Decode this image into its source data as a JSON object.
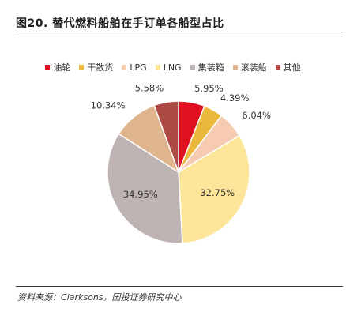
{
  "figure": {
    "title": "图20. 替代燃料船舶在手订单各船型占比",
    "source": "资料来源：Clarksons，国投证券研究中心"
  },
  "chart_data": {
    "type": "pie",
    "title": "",
    "start_angle_deg": 0,
    "direction": "clockwise",
    "slices": [
      {
        "label": "油轮",
        "value": 5.95,
        "value_label": "5.95%",
        "color": "#e0101e"
      },
      {
        "label": "干散货",
        "value": 4.39,
        "value_label": "4.39%",
        "color": "#eab83a"
      },
      {
        "label": "LPG",
        "value": 6.04,
        "value_label": "6.04%",
        "color": "#f6cbb2"
      },
      {
        "label": "LNG",
        "value": 32.75,
        "value_label": "32.75%",
        "color": "#fde59a"
      },
      {
        "label": "集装箱",
        "value": 34.95,
        "value_label": "34.95%",
        "color": "#bcb3b2"
      },
      {
        "label": "滚装船",
        "value": 10.34,
        "value_label": "10.34%",
        "color": "#dfb58e"
      },
      {
        "label": "其他",
        "value": 5.58,
        "value_label": "5.58%",
        "color": "#ad4a44"
      }
    ],
    "legend_position": "top"
  }
}
